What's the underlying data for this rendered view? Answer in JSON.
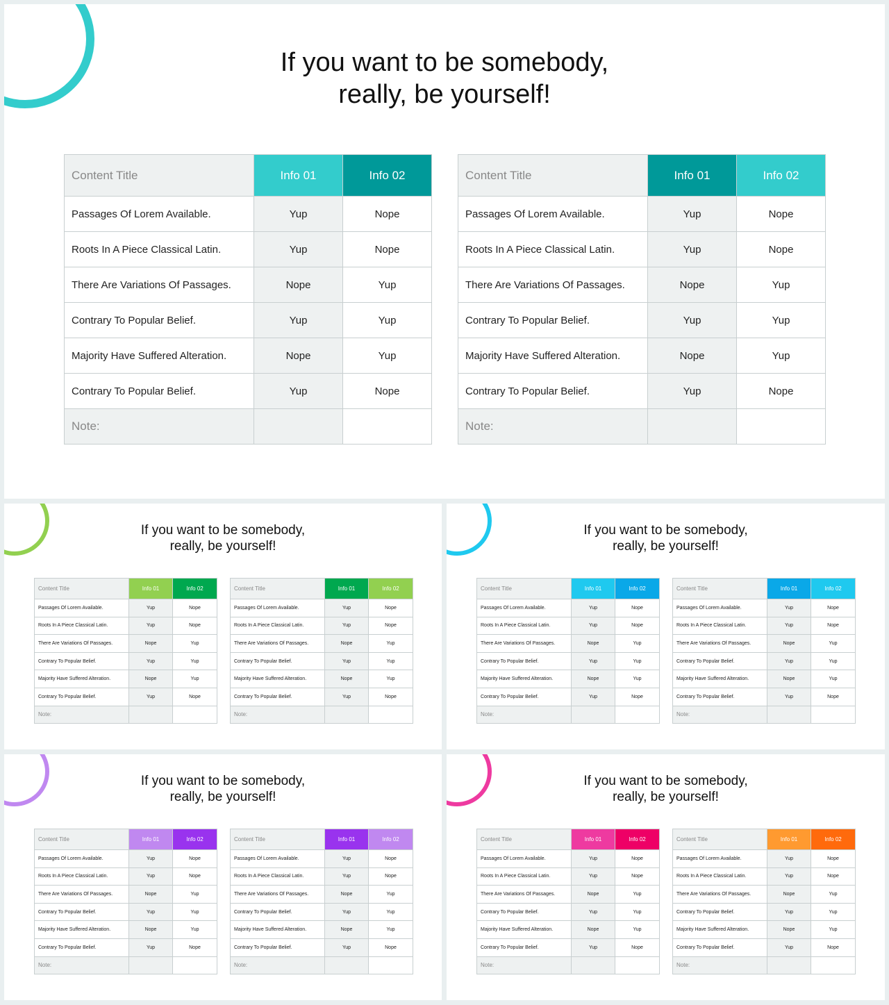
{
  "title_line1": "If you want to be somebody,",
  "title_line2": "really, be yourself!",
  "header": {
    "content_title": "Content Title",
    "info1": "Info 01",
    "info2": "Info 02"
  },
  "rows": [
    {
      "label": "Passages Of Lorem Available.",
      "info1": "Yup",
      "info2": "Nope"
    },
    {
      "label": "Roots In A Piece Classical Latin.",
      "info1": "Yup",
      "info2": "Nope"
    },
    {
      "label": "There Are Variations Of Passages.",
      "info1": "Nope",
      "info2": "Yup"
    },
    {
      "label": "Contrary To Popular Belief.",
      "info1": "Yup",
      "info2": "Yup"
    },
    {
      "label": "Majority Have Suffered Alteration.",
      "info1": "Nope",
      "info2": "Yup"
    },
    {
      "label": "Contrary To Popular Belief.",
      "info1": "Yup",
      "info2": "Nope"
    }
  ],
  "note_label": "Note:",
  "slides": [
    {
      "id": "main",
      "ring": "#33cccc",
      "t1": [
        "#33cccc",
        "#009999"
      ],
      "t2": [
        "#009999",
        "#33cccc"
      ]
    },
    {
      "id": "green",
      "ring": "#92d050",
      "t1": [
        "#92d050",
        "#00a84f"
      ],
      "t2": [
        "#00a84f",
        "#92d050"
      ]
    },
    {
      "id": "blue",
      "ring": "#1fc9ef",
      "t1": [
        "#1fc9ef",
        "#0aa8e8"
      ],
      "t2": [
        "#0aa8e8",
        "#1fc9ef"
      ]
    },
    {
      "id": "purple",
      "ring": "#c088f0",
      "t1": [
        "#c088f0",
        "#9933ee"
      ],
      "t2": [
        "#9933ee",
        "#c088f0"
      ]
    },
    {
      "id": "pink",
      "ring": "#ee3aa0",
      "t1": [
        "#ee3aa0",
        "#ee0066"
      ],
      "t2": [
        "#ff9a30",
        "#ff6a0c"
      ]
    }
  ]
}
